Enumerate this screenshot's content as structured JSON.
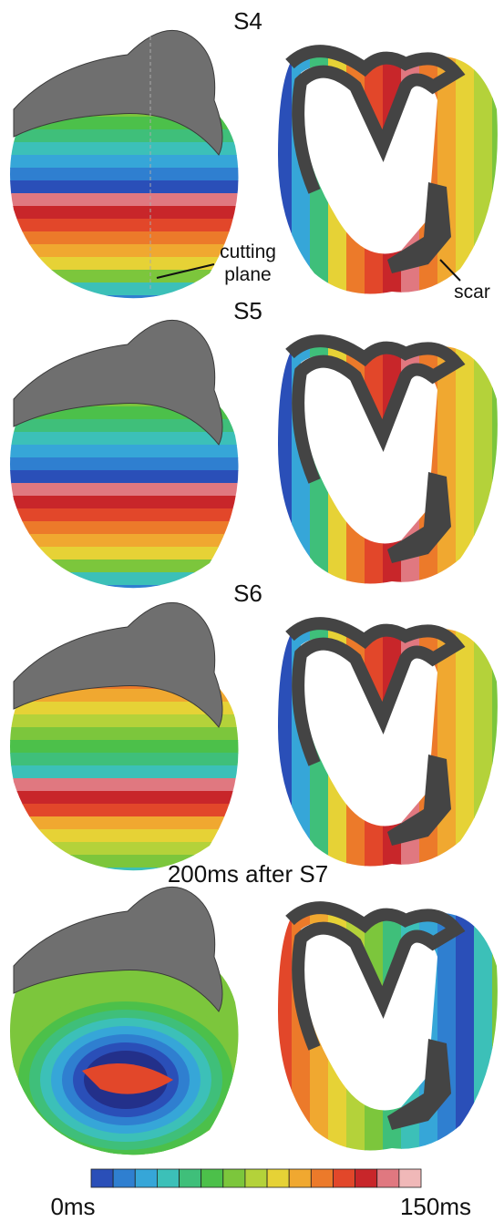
{
  "panels": [
    {
      "label": "S4"
    },
    {
      "label": "S5"
    },
    {
      "label": "S6"
    },
    {
      "label": "200ms after S7"
    }
  ],
  "annotations": {
    "cutting_plane": {
      "lines": [
        "cutting",
        "plane"
      ]
    },
    "scar": "scar"
  },
  "colorbar": {
    "colors": [
      "#2a4fb8",
      "#2f7fd0",
      "#36a6d8",
      "#3cc0b8",
      "#3fbf7a",
      "#4cc04a",
      "#7cc63c",
      "#b4d23a",
      "#e6d236",
      "#f0a830",
      "#ec7a2a",
      "#e2472a",
      "#c8262a",
      "#e07880",
      "#f0b8b8"
    ],
    "min_label": "0ms",
    "max_label": "150ms"
  }
}
